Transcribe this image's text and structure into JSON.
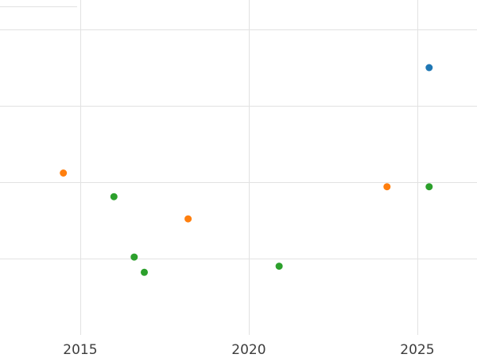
{
  "chart_data": {
    "type": "scatter",
    "title": "",
    "xlabel": "",
    "ylabel": "",
    "x_ticks": [
      2015,
      2020,
      2025
    ],
    "x_tick_labels": [
      "2015",
      "2020",
      "2025"
    ],
    "xlim": [
      2012.62,
      2026.77
    ],
    "ylim": [
      0,
      4.385
    ],
    "y_gridlines": [
      1,
      2,
      3,
      4
    ],
    "grid": true,
    "legend_position": "none",
    "series": [
      {
        "name": "blue",
        "color": "#1f77b4",
        "points": [
          {
            "x": 2025.35,
            "y": 3.5
          }
        ]
      },
      {
        "name": "orange",
        "color": "#ff7f0e",
        "points": [
          {
            "x": 2014.5,
            "y": 2.12
          },
          {
            "x": 2018.2,
            "y": 1.52
          },
          {
            "x": 2024.1,
            "y": 1.94
          }
        ]
      },
      {
        "name": "green",
        "color": "#2ca02c",
        "points": [
          {
            "x": 2016.0,
            "y": 1.81
          },
          {
            "x": 2016.6,
            "y": 1.02
          },
          {
            "x": 2016.9,
            "y": 0.82
          },
          {
            "x": 2020.9,
            "y": 0.9
          },
          {
            "x": 2025.35,
            "y": 1.94
          }
        ]
      }
    ]
  },
  "colors": {
    "background": "#ffffff",
    "grid": "#e2e2e2",
    "tick_text": "#3d3d3d"
  }
}
